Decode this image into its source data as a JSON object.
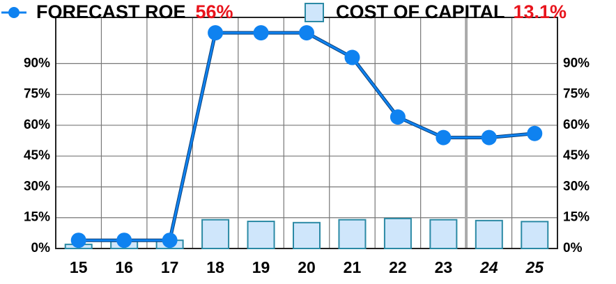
{
  "chart_data": {
    "type": "bar_line",
    "categories": [
      "15",
      "16",
      "17",
      "18",
      "19",
      "20",
      "21",
      "22",
      "23",
      "24",
      "25"
    ],
    "series": [
      {
        "name": "FORECAST ROE",
        "type": "line",
        "color": "#0f82f0",
        "legend_value": {
          "value": 56,
          "label": "56%"
        },
        "values": [
          4,
          4,
          4,
          105,
          105,
          105,
          93,
          64,
          54,
          54,
          56
        ]
      },
      {
        "name": "COST OF CAPITAL",
        "type": "bar",
        "color": "#cfe6fb",
        "legend_value": {
          "value": 13.1,
          "label": "13.1%"
        },
        "values": [
          2,
          3.5,
          4,
          14,
          13.2,
          12.6,
          14,
          14.6,
          14,
          13.6,
          13.1
        ]
      }
    ],
    "ylim": [
      0,
      112.5
    ],
    "yticks": [
      {
        "value": 0,
        "label": "0%"
      },
      {
        "value": 15,
        "label": "15%"
      },
      {
        "value": 30,
        "label": "30%"
      },
      {
        "value": 45,
        "label": "45%"
      },
      {
        "value": 60,
        "label": "60%"
      },
      {
        "value": 75,
        "label": "75%"
      },
      {
        "value": 90,
        "label": "90%"
      }
    ],
    "y2lim": [
      0,
      112.5
    ],
    "y2ticks": [
      {
        "value": 0,
        "label": "0%"
      },
      {
        "value": 15,
        "label": "15%"
      },
      {
        "value": 30,
        "label": "30%"
      },
      {
        "value": 45,
        "label": "45%"
      },
      {
        "value": 60,
        "label": "60%"
      },
      {
        "value": 75,
        "label": "75%"
      },
      {
        "value": 90,
        "label": "90%"
      }
    ],
    "grid": true
  }
}
